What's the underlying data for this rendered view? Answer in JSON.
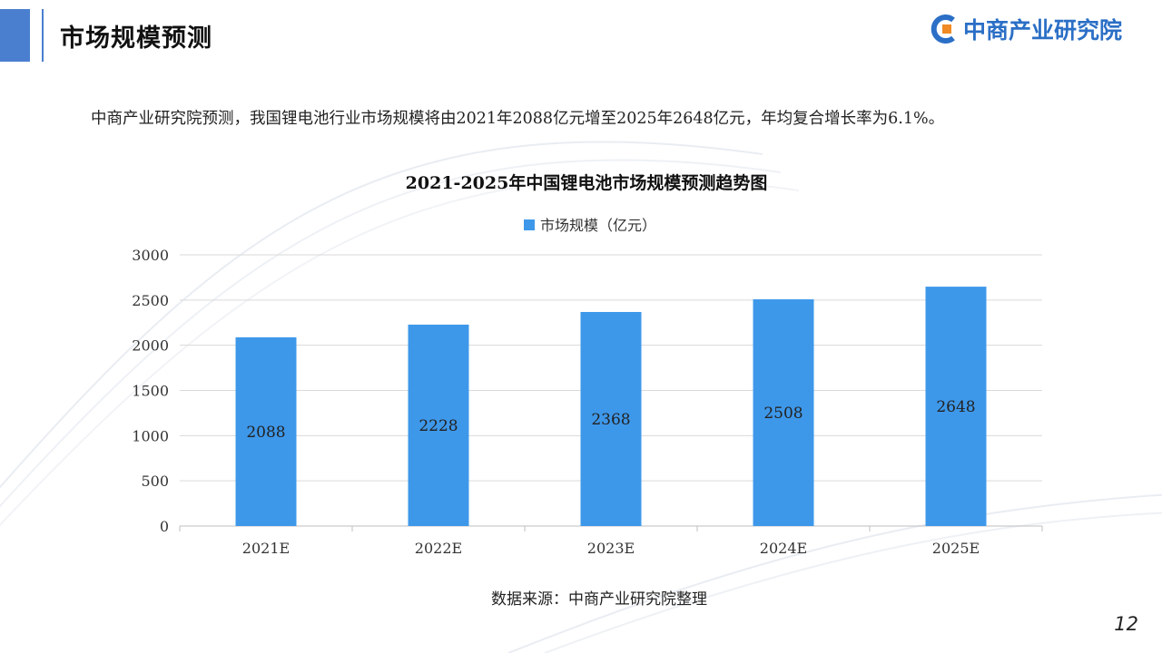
{
  "slide": {
    "title": "市场规模预测",
    "summary": "中商产业研究院预测，我国锂电池行业市场规模将由2021年2088亿元增至2025年2648亿元，年均复合增长率为6.1%。",
    "source": "数据来源：中商产业研究院整理",
    "page_number": "12"
  },
  "logo": {
    "text": "中商产业研究院",
    "icon": "logo-c-icon",
    "color": "#2b6fc6"
  },
  "colors": {
    "bar": "#3e98ea",
    "accent": "#4a7fd0",
    "grid": "#d9d9d9",
    "axis": "#bfbfbf"
  },
  "chart_data": {
    "type": "bar",
    "title": "2021-2025年中国锂电池市场规模预测趋势图",
    "categories": [
      "2021E",
      "2022E",
      "2023E",
      "2024E",
      "2025E"
    ],
    "series": [
      {
        "name": "市场规模（亿元）",
        "values": [
          2088,
          2228,
          2368,
          2508,
          2648
        ]
      }
    ],
    "xlabel": "",
    "ylabel": "",
    "ylim": [
      0,
      3000
    ],
    "yticks": [
      0,
      500,
      1000,
      1500,
      2000,
      2500,
      3000
    ],
    "grid": true,
    "legend": "top-center",
    "data_labels": "inside-center"
  }
}
